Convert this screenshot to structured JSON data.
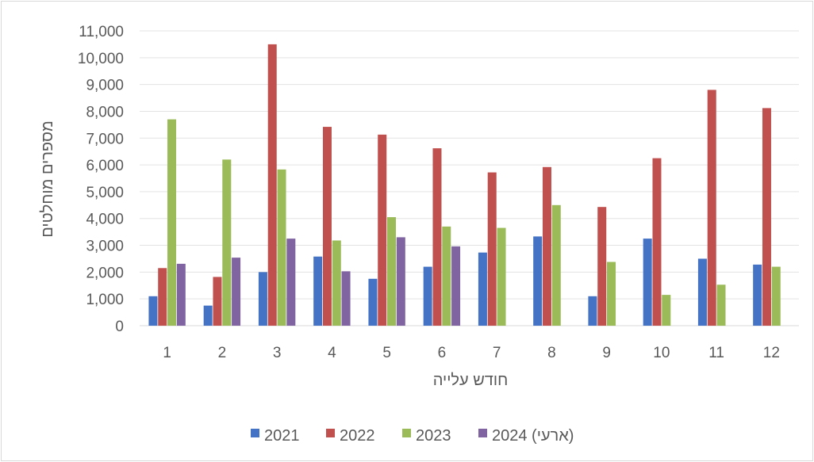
{
  "chart_data": {
    "type": "bar",
    "xlabel": "חודש עלייה",
    "ylabel": "מספרים מוחלטים",
    "ylim": [
      0,
      11000
    ],
    "yticks": [
      "0",
      "1,000",
      "2,000",
      "3,000",
      "4,000",
      "5,000",
      "6,000",
      "7,000",
      "8,000",
      "9,000",
      "10,000",
      "11,000"
    ],
    "categories": [
      "1",
      "2",
      "3",
      "4",
      "5",
      "6",
      "7",
      "8",
      "9",
      "10",
      "11",
      "12"
    ],
    "grid": true,
    "legend_position": "bottom",
    "series": [
      {
        "name": "2021",
        "color": "#4472c4",
        "values": [
          1100,
          750,
          2000,
          2580,
          1750,
          2200,
          2730,
          3330,
          1100,
          3250,
          2500,
          2280
        ]
      },
      {
        "name": "2022",
        "color": "#c0504d",
        "values": [
          2150,
          1820,
          10500,
          7420,
          7130,
          6620,
          5720,
          5920,
          4430,
          6250,
          8800,
          8120
        ]
      },
      {
        "name": "2023",
        "color": "#9bbb59",
        "values": [
          7700,
          6200,
          5830,
          3180,
          4050,
          3700,
          3650,
          4500,
          2380,
          1150,
          1530,
          2200
        ]
      },
      {
        "name": "2024 (ארעי)",
        "color": "#8064a2",
        "values": [
          2310,
          2540,
          3250,
          2030,
          3300,
          2960,
          null,
          null,
          null,
          null,
          null,
          null
        ]
      }
    ]
  }
}
